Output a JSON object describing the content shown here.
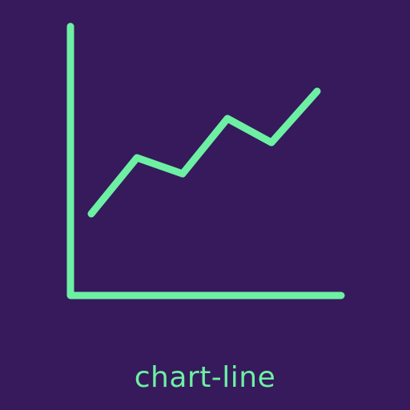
{
  "icon": {
    "name": "chart-line-icon",
    "color": "#6df0a3",
    "background": "#361a5c"
  },
  "caption": {
    "text": "chart-line"
  }
}
